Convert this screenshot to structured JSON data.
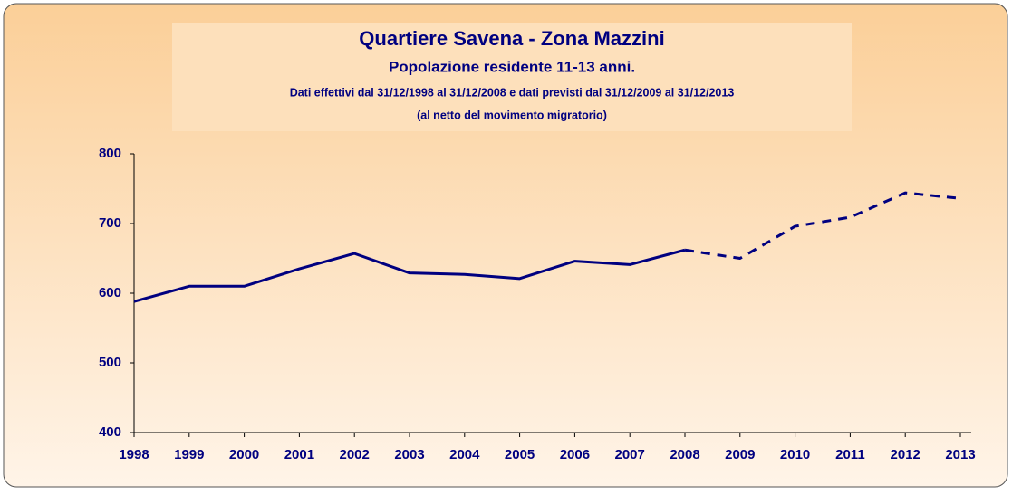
{
  "chart_data": {
    "type": "line",
    "title": "Quartiere Savena - Zona Mazzini",
    "subtitle": "Popolazione residente 11-13 anni.",
    "notes": [
      "Dati effettivi dal 31/12/1998 al 31/12/2008 e dati previsti dal 31/12/2009 al 31/12/2013",
      "(al netto del movimento migratorio)"
    ],
    "categories": [
      "1998",
      "1999",
      "2000",
      "2001",
      "2002",
      "2003",
      "2004",
      "2005",
      "2006",
      "2007",
      "2008",
      "2009",
      "2010",
      "2011",
      "2012",
      "2013"
    ],
    "series": [
      {
        "color": "#000080",
        "dashed": false,
        "values": [
          588,
          610,
          610,
          635,
          657,
          629,
          627,
          621,
          646,
          641,
          662,
          null,
          null,
          null,
          null,
          null
        ]
      },
      {
        "color": "#000080",
        "dashed": true,
        "values": [
          null,
          null,
          null,
          null,
          null,
          null,
          null,
          null,
          null,
          null,
          662,
          650,
          696,
          709,
          744,
          736
        ]
      }
    ],
    "ylim": [
      400,
      800
    ],
    "yticks": [
      400,
      500,
      600,
      700,
      800
    ],
    "grid": false
  }
}
